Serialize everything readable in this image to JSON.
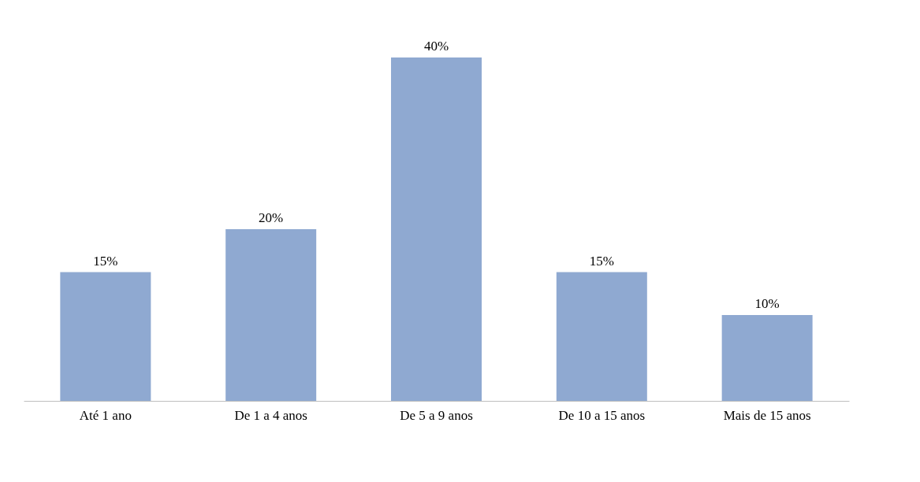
{
  "chart_data": {
    "type": "bar",
    "categories": [
      "Até 1 ano",
      "De 1 a 4 anos",
      "De 5 a 9 anos",
      "De 10 a 15 anos",
      "Mais de 15 anos"
    ],
    "values": [
      15,
      20,
      40,
      15,
      10
    ],
    "value_labels": [
      "15%",
      "20%",
      "40%",
      "15%",
      "10%"
    ],
    "color": "#8fa9d1"
  }
}
